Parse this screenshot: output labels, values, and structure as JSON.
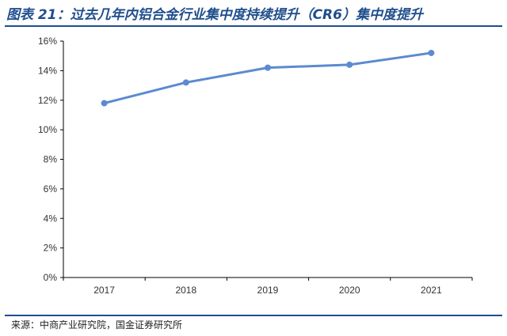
{
  "figure": {
    "title": "图表 21：过去几年内铝合金行业集中度持续提升（CR6）集中度提升",
    "source": "来源：中商产业研究院，国金证券研究所"
  },
  "chart_data": {
    "type": "line",
    "title": "",
    "xlabel": "",
    "ylabel": "",
    "categories": [
      "2017",
      "2018",
      "2019",
      "2020",
      "2021"
    ],
    "series": [
      {
        "values": [
          11.8,
          13.2,
          14.2,
          14.4,
          15.2
        ]
      }
    ],
    "ylim": [
      0,
      16
    ],
    "yticks": [
      "0%",
      "2%",
      "4%",
      "6%",
      "8%",
      "10%",
      "12%",
      "14%",
      "16%"
    ],
    "grid": false,
    "legend": "none",
    "colors": {
      "line": "#5b8bd0",
      "axis": "#000000"
    }
  }
}
